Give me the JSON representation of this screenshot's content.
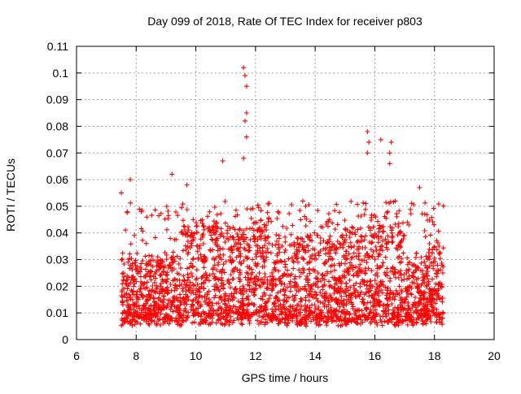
{
  "chart_data": {
    "type": "scatter",
    "title": "Day 099 of 2018, Rate Of TEC Index for receiver p803",
    "xlabel": "GPS time / hours",
    "ylabel": "ROTI / TECUs",
    "xlim": [
      6,
      20
    ],
    "ylim": [
      0,
      0.11
    ],
    "x_ticks": [
      "6",
      "8",
      "10",
      "12",
      "14",
      "16",
      "18",
      "20"
    ],
    "y_ticks": [
      "0",
      "0.01",
      "0.02",
      "0.03",
      "0.04",
      "0.05",
      "0.06",
      "0.07",
      "0.08",
      "0.09",
      "0.1",
      "0.11"
    ],
    "grid": true,
    "marker": "+",
    "color": "#ff0000",
    "series": [
      {
        "name": "ROTI",
        "data_range_hours": [
          7.5,
          18.3
        ],
        "typical_range": [
          0.005,
          0.045
        ],
        "notable_points": [
          {
            "x": 7.5,
            "y": 0.055
          },
          {
            "x": 7.8,
            "y": 0.06
          },
          {
            "x": 9.2,
            "y": 0.062
          },
          {
            "x": 9.7,
            "y": 0.058
          },
          {
            "x": 10.9,
            "y": 0.067
          },
          {
            "x": 11.6,
            "y": 0.102
          },
          {
            "x": 11.65,
            "y": 0.099
          },
          {
            "x": 11.7,
            "y": 0.095
          },
          {
            "x": 11.7,
            "y": 0.085
          },
          {
            "x": 11.65,
            "y": 0.082
          },
          {
            "x": 11.7,
            "y": 0.076
          },
          {
            "x": 11.6,
            "y": 0.068
          },
          {
            "x": 15.75,
            "y": 0.078
          },
          {
            "x": 15.8,
            "y": 0.074
          },
          {
            "x": 15.75,
            "y": 0.07
          },
          {
            "x": 16.2,
            "y": 0.075
          },
          {
            "x": 16.55,
            "y": 0.074
          },
          {
            "x": 16.5,
            "y": 0.07
          },
          {
            "x": 16.5,
            "y": 0.066
          },
          {
            "x": 17.5,
            "y": 0.057
          }
        ]
      }
    ]
  }
}
